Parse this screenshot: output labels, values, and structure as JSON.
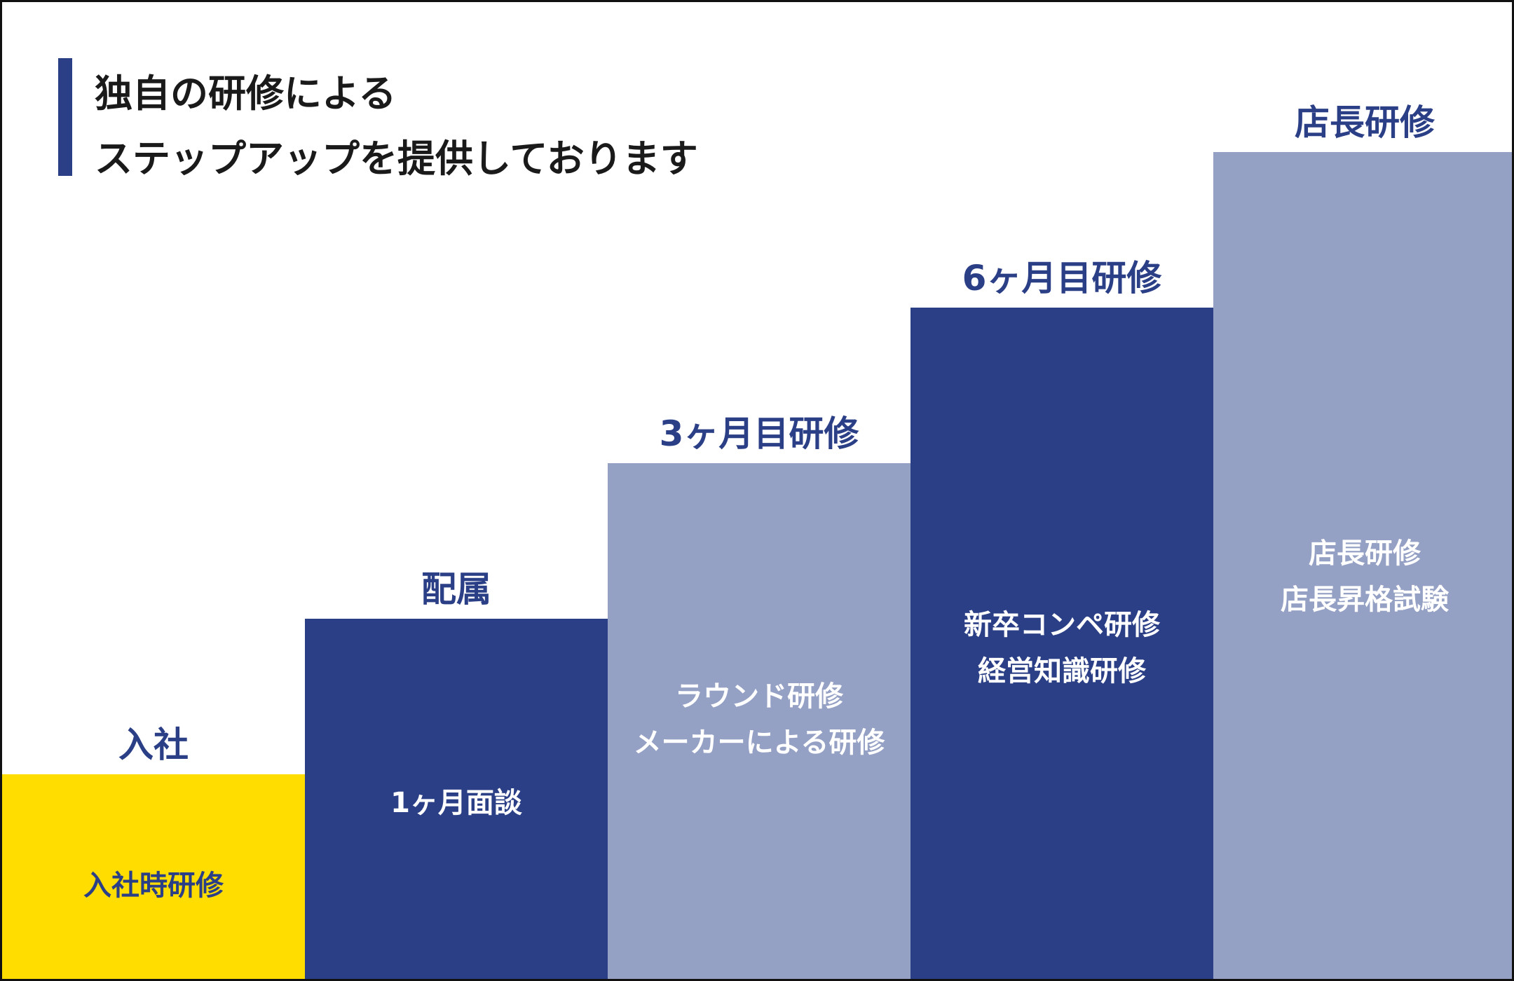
{
  "heading": {
    "line1": "独自の研修による",
    "line2": "ステップアップを提供しております"
  },
  "colors": {
    "navy": "#2b3f86",
    "light_navy": "#95a0c5",
    "yellow": "#ffdd00",
    "text_dark": "#1a1a1a",
    "white": "#ffffff"
  },
  "steps": [
    {
      "label": "入社",
      "items": [
        "入社時研修"
      ]
    },
    {
      "label": "配属",
      "items": [
        "1ヶ月面談"
      ]
    },
    {
      "label": "3ヶ月目研修",
      "items": [
        "ラウンド研修",
        "メーカーによる研修"
      ]
    },
    {
      "label": "6ヶ月目研修",
      "items": [
        "新卒コンペ研修",
        "経営知識研修"
      ]
    },
    {
      "label": "店長研修",
      "items": [
        "店長研修",
        "店長昇格試験"
      ]
    }
  ]
}
